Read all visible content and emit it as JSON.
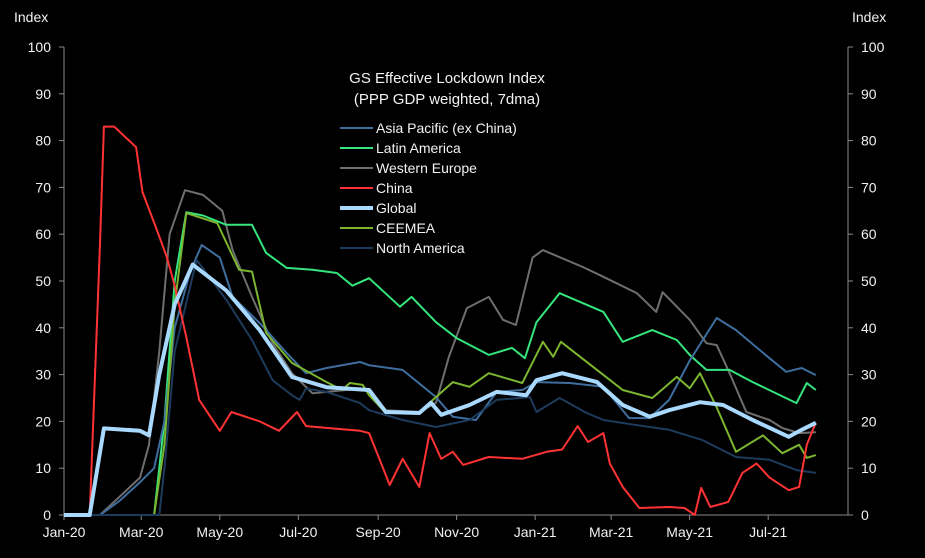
{
  "chart_data": {
    "type": "line",
    "title": "GS Effective Lockdown Index",
    "subtitle": "(PPP GDP weighted, 7dma)",
    "ylabel_left": "Index",
    "ylabel_right": "Index",
    "ylim": [
      0,
      100
    ],
    "yticks": [
      0,
      10,
      20,
      30,
      40,
      50,
      60,
      70,
      80,
      90,
      100
    ],
    "xlim": [
      "2020-01-01",
      "2021-09-01"
    ],
    "xticks": [
      {
        "date": "2020-01-01",
        "label": "Jan-20"
      },
      {
        "date": "2020-03-01",
        "label": "Mar-20"
      },
      {
        "date": "2020-05-01",
        "label": "May-20"
      },
      {
        "date": "2020-07-01",
        "label": "Jul-20"
      },
      {
        "date": "2020-09-01",
        "label": "Sep-20"
      },
      {
        "date": "2020-11-01",
        "label": "Nov-20"
      },
      {
        "date": "2021-01-01",
        "label": "Jan-21"
      },
      {
        "date": "2021-03-01",
        "label": "Mar-21"
      },
      {
        "date": "2021-05-01",
        "label": "May-21"
      },
      {
        "date": "2021-07-01",
        "label": "Jul-21"
      }
    ],
    "grid": false,
    "legend_position": "top-center",
    "series": [
      {
        "name": "Asia Pacific (ex China)",
        "color": "#3f6e9e",
        "width": 2,
        "points": [
          [
            "2020-01-01",
            0
          ],
          [
            "2020-01-29",
            0
          ],
          [
            "2020-02-13",
            3
          ],
          [
            "2020-02-29",
            7
          ],
          [
            "2020-03-11",
            10
          ],
          [
            "2020-03-19",
            20
          ],
          [
            "2020-03-27",
            40
          ],
          [
            "2020-04-08",
            52
          ],
          [
            "2020-04-17",
            57.7
          ],
          [
            "2020-05-01",
            55
          ],
          [
            "2020-05-11",
            46.6
          ],
          [
            "2020-06-01",
            41
          ],
          [
            "2020-06-22",
            34.6
          ],
          [
            "2020-07-07",
            30.3
          ],
          [
            "2020-07-23",
            31.4
          ],
          [
            "2020-08-18",
            32.7
          ],
          [
            "2020-08-25",
            32
          ],
          [
            "2020-09-20",
            31
          ],
          [
            "2020-10-16",
            25.2
          ],
          [
            "2020-10-29",
            21
          ],
          [
            "2020-11-16",
            20.3
          ],
          [
            "2020-12-02",
            26.3
          ],
          [
            "2020-12-22",
            26.7
          ],
          [
            "2021-01-02",
            28.4
          ],
          [
            "2021-01-28",
            28.2
          ],
          [
            "2021-02-23",
            27.4
          ],
          [
            "2021-03-15",
            20.7
          ],
          [
            "2021-03-31",
            20.7
          ],
          [
            "2021-04-15",
            24.6
          ],
          [
            "2021-05-01",
            33
          ],
          [
            "2021-05-22",
            42.1
          ],
          [
            "2021-06-06",
            39.5
          ],
          [
            "2021-07-02",
            33.5
          ],
          [
            "2021-07-15",
            30.6
          ],
          [
            "2021-07-27",
            31.4
          ],
          [
            "2021-08-07",
            29.9
          ]
        ]
      },
      {
        "name": "Latin America",
        "color": "#35e57d",
        "width": 2,
        "points": [
          [
            "2020-01-01",
            0
          ],
          [
            "2020-03-11",
            0
          ],
          [
            "2020-03-19",
            20
          ],
          [
            "2020-03-27",
            50
          ],
          [
            "2020-04-05",
            64.7
          ],
          [
            "2020-04-18",
            64
          ],
          [
            "2020-05-06",
            62
          ],
          [
            "2020-05-26",
            62
          ],
          [
            "2020-06-06",
            56
          ],
          [
            "2020-06-22",
            52.8
          ],
          [
            "2020-07-12",
            52.4
          ],
          [
            "2020-07-31",
            51.7
          ],
          [
            "2020-08-12",
            49
          ],
          [
            "2020-08-25",
            50.6
          ],
          [
            "2020-09-18",
            44.5
          ],
          [
            "2020-09-27",
            46.6
          ],
          [
            "2020-10-16",
            41.2
          ],
          [
            "2020-11-01",
            37.8
          ],
          [
            "2020-11-26",
            34.2
          ],
          [
            "2020-12-14",
            35.7
          ],
          [
            "2020-12-24",
            33.5
          ],
          [
            "2021-01-02",
            41.2
          ],
          [
            "2021-01-20",
            47.4
          ],
          [
            "2021-02-23",
            43.4
          ],
          [
            "2021-03-10",
            37
          ],
          [
            "2021-04-02",
            39.5
          ],
          [
            "2021-04-21",
            37.4
          ],
          [
            "2021-05-01",
            34.2
          ],
          [
            "2021-05-14",
            31
          ],
          [
            "2021-06-01",
            31
          ],
          [
            "2021-06-19",
            28.4
          ],
          [
            "2021-07-23",
            23.9
          ],
          [
            "2021-07-31",
            28.2
          ],
          [
            "2021-08-07",
            26.7
          ]
        ]
      },
      {
        "name": "Western Europe",
        "color": "#6e6e6e",
        "width": 2,
        "points": [
          [
            "2020-01-01",
            0
          ],
          [
            "2020-01-29",
            0
          ],
          [
            "2020-02-29",
            8
          ],
          [
            "2020-03-07",
            15
          ],
          [
            "2020-03-15",
            35
          ],
          [
            "2020-03-23",
            60
          ],
          [
            "2020-04-04",
            69.4
          ],
          [
            "2020-04-18",
            68.4
          ],
          [
            "2020-05-03",
            65
          ],
          [
            "2020-05-11",
            56.6
          ],
          [
            "2020-05-26",
            46.6
          ],
          [
            "2020-06-11",
            36.7
          ],
          [
            "2020-06-26",
            30.3
          ],
          [
            "2020-07-12",
            26
          ],
          [
            "2020-08-18",
            27
          ],
          [
            "2020-08-25",
            26.7
          ],
          [
            "2020-09-07",
            22.4
          ],
          [
            "2020-10-03",
            22
          ],
          [
            "2020-10-16",
            24
          ],
          [
            "2020-10-26",
            33.8
          ],
          [
            "2020-11-09",
            44.2
          ],
          [
            "2020-11-26",
            46.6
          ],
          [
            "2020-12-07",
            41.7
          ],
          [
            "2020-12-17",
            40.6
          ],
          [
            "2020-12-30",
            55
          ],
          [
            "2021-01-07",
            56.6
          ],
          [
            "2021-02-07",
            53
          ],
          [
            "2021-02-23",
            50.9
          ],
          [
            "2021-03-21",
            47.4
          ],
          [
            "2021-04-05",
            43.4
          ],
          [
            "2021-04-10",
            47.6
          ],
          [
            "2021-05-01",
            41.7
          ],
          [
            "2021-05-14",
            36.7
          ],
          [
            "2021-05-22",
            36.3
          ],
          [
            "2021-06-01",
            30.3
          ],
          [
            "2021-06-14",
            22
          ],
          [
            "2021-07-02",
            20.3
          ],
          [
            "2021-07-12",
            18.6
          ],
          [
            "2021-07-25",
            17.5
          ],
          [
            "2021-08-07",
            17.7
          ]
        ]
      },
      {
        "name": "China",
        "color": "#ff3333",
        "width": 2,
        "points": [
          [
            "2020-01-01",
            0
          ],
          [
            "2020-01-21",
            0
          ],
          [
            "2020-01-29",
            58
          ],
          [
            "2020-02-01",
            83
          ],
          [
            "2020-02-09",
            83
          ],
          [
            "2020-02-26",
            78.6
          ],
          [
            "2020-03-02",
            69
          ],
          [
            "2020-03-13",
            61
          ],
          [
            "2020-03-21",
            55
          ],
          [
            "2020-03-27",
            49
          ],
          [
            "2020-04-05",
            38
          ],
          [
            "2020-04-15",
            24.6
          ],
          [
            "2020-05-01",
            18
          ],
          [
            "2020-05-10",
            22
          ],
          [
            "2020-06-01",
            20
          ],
          [
            "2020-06-16",
            18
          ],
          [
            "2020-06-30",
            22
          ],
          [
            "2020-07-07",
            19
          ],
          [
            "2020-08-18",
            18
          ],
          [
            "2020-08-25",
            17.5
          ],
          [
            "2020-09-10",
            6.4
          ],
          [
            "2020-09-20",
            12
          ],
          [
            "2020-10-03",
            6
          ],
          [
            "2020-10-11",
            17.5
          ],
          [
            "2020-10-20",
            12
          ],
          [
            "2020-10-29",
            13.5
          ],
          [
            "2020-11-06",
            10.7
          ],
          [
            "2020-11-26",
            12.4
          ],
          [
            "2020-12-22",
            12
          ],
          [
            "2021-01-10",
            13.5
          ],
          [
            "2021-01-22",
            14
          ],
          [
            "2021-02-03",
            19
          ],
          [
            "2021-02-11",
            15.6
          ],
          [
            "2021-02-23",
            17.5
          ],
          [
            "2021-02-28",
            11
          ],
          [
            "2021-03-10",
            6
          ],
          [
            "2021-03-23",
            1.5
          ],
          [
            "2021-04-15",
            1.7
          ],
          [
            "2021-04-27",
            1.5
          ],
          [
            "2021-05-05",
            0
          ],
          [
            "2021-05-10",
            5.8
          ],
          [
            "2021-05-17",
            1.7
          ],
          [
            "2021-05-31",
            2.8
          ],
          [
            "2021-06-11",
            9
          ],
          [
            "2021-06-22",
            11
          ],
          [
            "2021-07-02",
            8
          ],
          [
            "2021-07-17",
            5.3
          ],
          [
            "2021-07-25",
            6
          ],
          [
            "2021-07-31",
            15
          ],
          [
            "2021-08-07",
            19.7
          ]
        ]
      },
      {
        "name": "Global",
        "color": "#a9d9ff",
        "width": 4,
        "points": [
          [
            "2020-01-01",
            0
          ],
          [
            "2020-01-21",
            0
          ],
          [
            "2020-02-01",
            18.5
          ],
          [
            "2020-02-29",
            18
          ],
          [
            "2020-03-07",
            17
          ],
          [
            "2020-03-15",
            30
          ],
          [
            "2020-03-27",
            45
          ],
          [
            "2020-04-10",
            53.5
          ],
          [
            "2020-05-06",
            48
          ],
          [
            "2020-06-01",
            39.5
          ],
          [
            "2020-06-26",
            29.5
          ],
          [
            "2020-07-23",
            27.3
          ],
          [
            "2020-08-25",
            26.7
          ],
          [
            "2020-09-07",
            22
          ],
          [
            "2020-10-03",
            21.8
          ],
          [
            "2020-10-12",
            24
          ],
          [
            "2020-10-20",
            21.4
          ],
          [
            "2020-11-11",
            23.5
          ],
          [
            "2020-12-02",
            26.3
          ],
          [
            "2020-12-25",
            25.6
          ],
          [
            "2021-01-02",
            28.8
          ],
          [
            "2021-01-22",
            30.3
          ],
          [
            "2021-02-18",
            28.4
          ],
          [
            "2021-03-10",
            23.5
          ],
          [
            "2021-03-31",
            21
          ],
          [
            "2021-04-15",
            22.4
          ],
          [
            "2021-05-09",
            24.1
          ],
          [
            "2021-05-27",
            23.5
          ],
          [
            "2021-06-19",
            20.3
          ],
          [
            "2021-07-17",
            16.7
          ],
          [
            "2021-07-27",
            18.2
          ],
          [
            "2021-08-07",
            19.7
          ]
        ]
      },
      {
        "name": "CEEMEA",
        "color": "#7cb62f",
        "width": 2,
        "points": [
          [
            "2020-01-01",
            0
          ],
          [
            "2020-03-11",
            0
          ],
          [
            "2020-03-19",
            15
          ],
          [
            "2020-03-27",
            45
          ],
          [
            "2020-04-05",
            64.5
          ],
          [
            "2020-04-29",
            62.4
          ],
          [
            "2020-05-16",
            52.4
          ],
          [
            "2020-05-26",
            52
          ],
          [
            "2020-06-06",
            38.9
          ],
          [
            "2020-06-26",
            32.5
          ],
          [
            "2020-07-23",
            28.4
          ],
          [
            "2020-08-04",
            26.7
          ],
          [
            "2020-08-10",
            28.2
          ],
          [
            "2020-08-20",
            27.8
          ],
          [
            "2020-08-25",
            25.6
          ],
          [
            "2020-09-07",
            21.8
          ],
          [
            "2020-10-03",
            22
          ],
          [
            "2020-10-29",
            28.4
          ],
          [
            "2020-11-11",
            27.4
          ],
          [
            "2020-11-26",
            30.3
          ],
          [
            "2020-12-22",
            28.2
          ],
          [
            "2021-01-07",
            37
          ],
          [
            "2021-01-15",
            33.8
          ],
          [
            "2021-01-21",
            37
          ],
          [
            "2021-02-18",
            31
          ],
          [
            "2021-03-10",
            26.7
          ],
          [
            "2021-04-02",
            25
          ],
          [
            "2021-04-21",
            29.5
          ],
          [
            "2021-05-01",
            27.1
          ],
          [
            "2021-05-09",
            30.3
          ],
          [
            "2021-05-22",
            23
          ],
          [
            "2021-06-06",
            13.5
          ],
          [
            "2021-06-27",
            17
          ],
          [
            "2021-07-12",
            13.2
          ],
          [
            "2021-07-25",
            15
          ],
          [
            "2021-07-31",
            12.2
          ],
          [
            "2021-08-07",
            12.8
          ]
        ]
      },
      {
        "name": "North America",
        "color": "#1d3b5c",
        "width": 2,
        "points": [
          [
            "2020-01-01",
            0
          ],
          [
            "2020-03-15",
            0
          ],
          [
            "2020-03-19",
            10
          ],
          [
            "2020-03-27",
            35
          ],
          [
            "2020-04-13",
            54.5
          ],
          [
            "2020-05-06",
            46
          ],
          [
            "2020-05-26",
            37.4
          ],
          [
            "2020-06-11",
            28.8
          ],
          [
            "2020-06-26",
            25.6
          ],
          [
            "2020-07-02",
            24.6
          ],
          [
            "2020-07-07",
            27
          ],
          [
            "2020-07-23",
            26.3
          ],
          [
            "2020-08-18",
            23.9
          ],
          [
            "2020-08-25",
            22.4
          ],
          [
            "2020-09-20",
            20.3
          ],
          [
            "2020-10-16",
            18.8
          ],
          [
            "2020-11-11",
            20.3
          ],
          [
            "2020-12-02",
            24.6
          ],
          [
            "2020-12-28",
            25.2
          ],
          [
            "2021-01-02",
            22
          ],
          [
            "2021-01-20",
            25
          ],
          [
            "2021-02-10",
            21.8
          ],
          [
            "2021-02-23",
            20.3
          ],
          [
            "2021-03-21",
            19.2
          ],
          [
            "2021-04-15",
            18.2
          ],
          [
            "2021-05-11",
            16
          ],
          [
            "2021-06-06",
            12.4
          ],
          [
            "2021-07-02",
            11.8
          ],
          [
            "2021-07-23",
            9.6
          ],
          [
            "2021-08-07",
            9
          ]
        ]
      }
    ]
  }
}
